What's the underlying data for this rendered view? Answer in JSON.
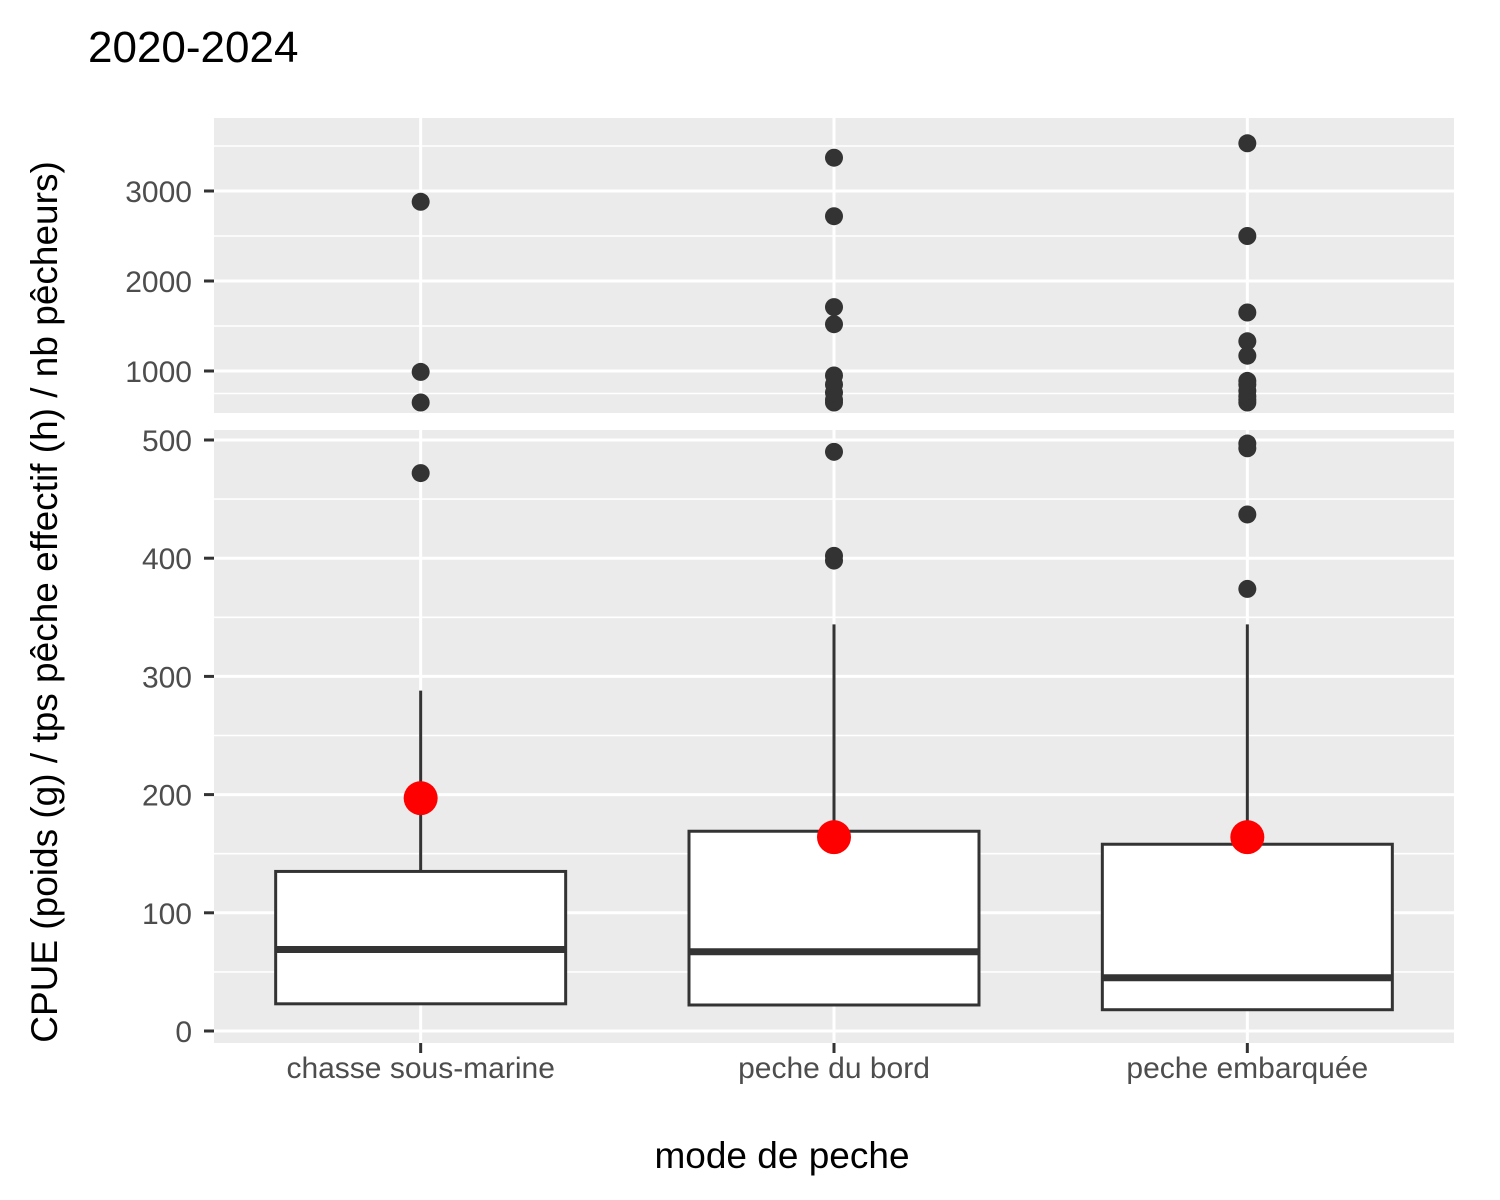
{
  "chart_data": {
    "type": "boxplot",
    "title": "2020-2024",
    "xlabel": "mode de peche",
    "ylabel": "CPUE (poids (g) / tps pêche effectif (h) / nb pêcheurs)",
    "categories": [
      "chasse sous-marine",
      "peche du bord",
      "peche embarquée"
    ],
    "axis_break": {
      "lower_range": [
        0,
        500
      ],
      "upper_range": [
        500,
        3800
      ]
    },
    "lower_ticks": [
      0,
      100,
      200,
      300,
      400,
      500
    ],
    "upper_ticks": [
      1000,
      2000,
      3000
    ],
    "boxes": [
      {
        "category": "chasse sous-marine",
        "q1": 23,
        "median": 69,
        "q3": 135,
        "whisker_low": 23,
        "whisker_high": 288,
        "mean": 197,
        "outliers": [
          472,
          650,
          990,
          2880
        ]
      },
      {
        "category": "peche du bord",
        "q1": 22,
        "median": 67,
        "q3": 169,
        "whisker_low": 22,
        "whisker_high": 344,
        "mean": 164,
        "outliers": [
          398,
          402,
          490,
          650,
          680,
          760,
          850,
          950,
          1520,
          1710,
          2720,
          3370
        ]
      },
      {
        "category": "peche embarquée",
        "q1": 18,
        "median": 45,
        "q3": 158,
        "whisker_low": 18,
        "whisker_high": 344,
        "mean": 164,
        "outliers": [
          374,
          437,
          493,
          497,
          650,
          680,
          720,
          780,
          850,
          890,
          1170,
          1330,
          1650,
          2500,
          3530
        ]
      }
    ],
    "colors": {
      "panel": "#ebebeb",
      "grid": "#ffffff",
      "box_line": "#333333",
      "outlier": "#333333",
      "mean": "#ff0000"
    },
    "grid": true,
    "legend": "none"
  }
}
